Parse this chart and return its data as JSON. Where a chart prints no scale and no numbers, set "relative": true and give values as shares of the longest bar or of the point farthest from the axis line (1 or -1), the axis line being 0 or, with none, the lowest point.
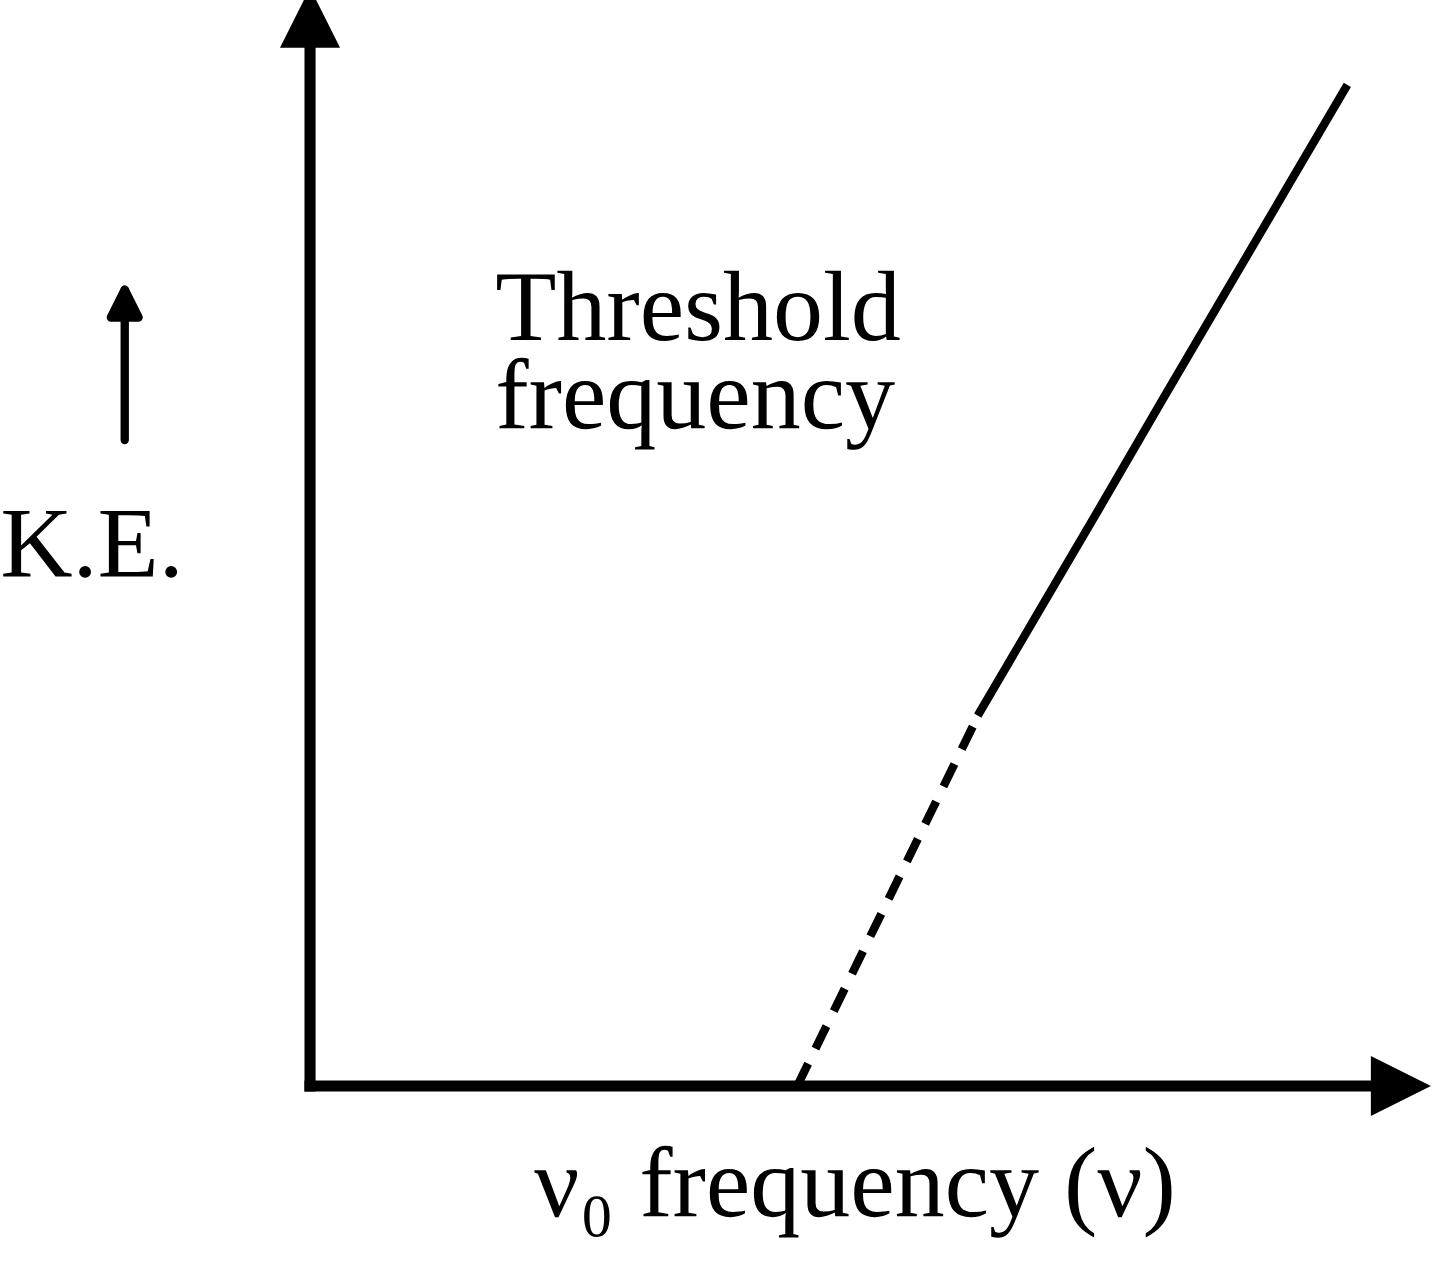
{
  "chart_data": {
    "type": "line",
    "relative": true,
    "xlabel": "ν₀ frequency (ν)",
    "ylabel": "K.E.",
    "annotations": [
      "Threshold\nfrequency"
    ],
    "categories": [
      null,
      null,
      null,
      null,
      null,
      null,
      null,
      null,
      null,
      null,
      null,
      null,
      null,
      null,
      null,
      null,
      null,
      null
    ],
    "series": [
      {
        "color": "#000000",
        "line_style": "dashed",
        "values": [
          null,
          null,
          null,
          null,
          null,
          null,
          null,
          null,
          0,
          0.125,
          0.25,
          0.375,
          null,
          null,
          null,
          null,
          null,
          null
        ]
      },
      {
        "color": "#000000",
        "line_style": "solid",
        "values": [
          null,
          null,
          null,
          null,
          null,
          null,
          null,
          null,
          null,
          null,
          null,
          0.375,
          0.479,
          0.583,
          0.688,
          0.792,
          0.896,
          1
        ]
      }
    ],
    "legend": false,
    "grid": false,
    "marker": "none"
  }
}
